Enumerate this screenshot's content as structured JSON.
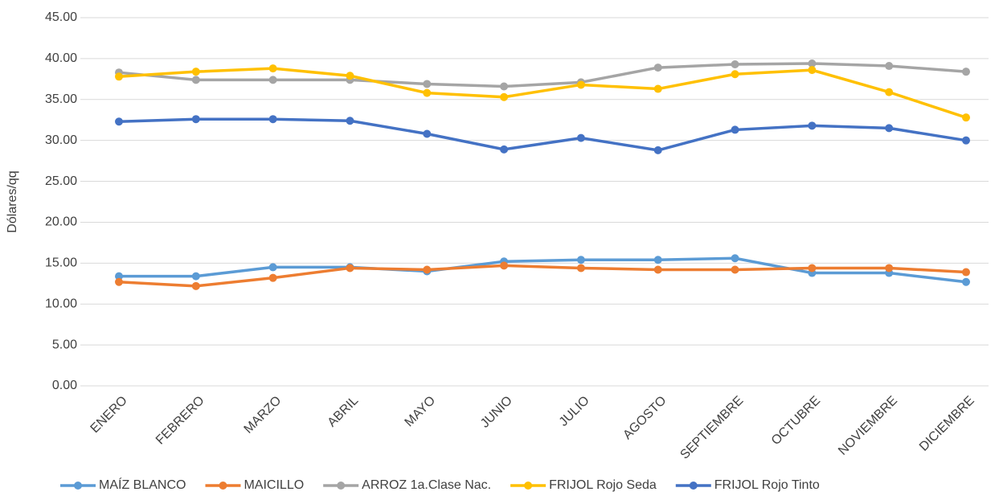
{
  "chart_data": {
    "type": "line",
    "y_label": "Dólares/qq",
    "categories": [
      "ENERO",
      "FEBRERO",
      "MARZO",
      "ABRIL",
      "MAYO",
      "JUNIO",
      "JULIO",
      "AGOSTO",
      "SEPTIEMBRE",
      "OCTUBRE",
      "NOVIEMBRE",
      "DICIEMBRE"
    ],
    "series": [
      {
        "name": "MAÍZ BLANCO",
        "color": "#5b9bd5",
        "values": [
          13.4,
          13.4,
          14.5,
          14.5,
          14.0,
          15.2,
          15.4,
          15.4,
          15.6,
          13.8,
          13.8,
          12.7
        ]
      },
      {
        "name": "MAICILLO",
        "color": "#ed7d31",
        "values": [
          12.7,
          12.2,
          13.2,
          14.4,
          14.2,
          14.7,
          14.4,
          14.2,
          14.2,
          14.4,
          14.4,
          13.9
        ]
      },
      {
        "name": "ARROZ 1a.Clase Nac.",
        "color": "#a5a5a5",
        "values": [
          38.3,
          37.4,
          37.4,
          37.4,
          36.9,
          36.6,
          37.1,
          38.9,
          39.3,
          39.4,
          39.1,
          38.4
        ]
      },
      {
        "name": "FRIJOL Rojo Seda",
        "color": "#ffc000",
        "values": [
          37.8,
          38.4,
          38.8,
          37.9,
          35.8,
          35.3,
          36.8,
          36.3,
          38.1,
          38.6,
          35.9,
          32.8
        ]
      },
      {
        "name": "FRIJOL Rojo Tinto",
        "color": "#4472c4",
        "values": [
          32.3,
          32.6,
          32.6,
          32.4,
          30.8,
          28.9,
          30.3,
          28.8,
          31.3,
          31.8,
          31.5,
          30.0
        ]
      }
    ],
    "ylim": [
      0,
      45
    ],
    "yticks": [
      {
        "value": 0,
        "label": "0.00"
      },
      {
        "value": 5,
        "label": "5.00"
      },
      {
        "value": 10,
        "label": "10.00"
      },
      {
        "value": 15,
        "label": "15.00"
      },
      {
        "value": 20,
        "label": "20.00"
      },
      {
        "value": 25,
        "label": "25.00"
      },
      {
        "value": 30,
        "label": "30.00"
      },
      {
        "value": 35,
        "label": "35.00"
      },
      {
        "value": 40,
        "label": "40.00"
      },
      {
        "value": 45,
        "label": "45.00"
      }
    ],
    "grid": true,
    "legend": "bottom"
  }
}
